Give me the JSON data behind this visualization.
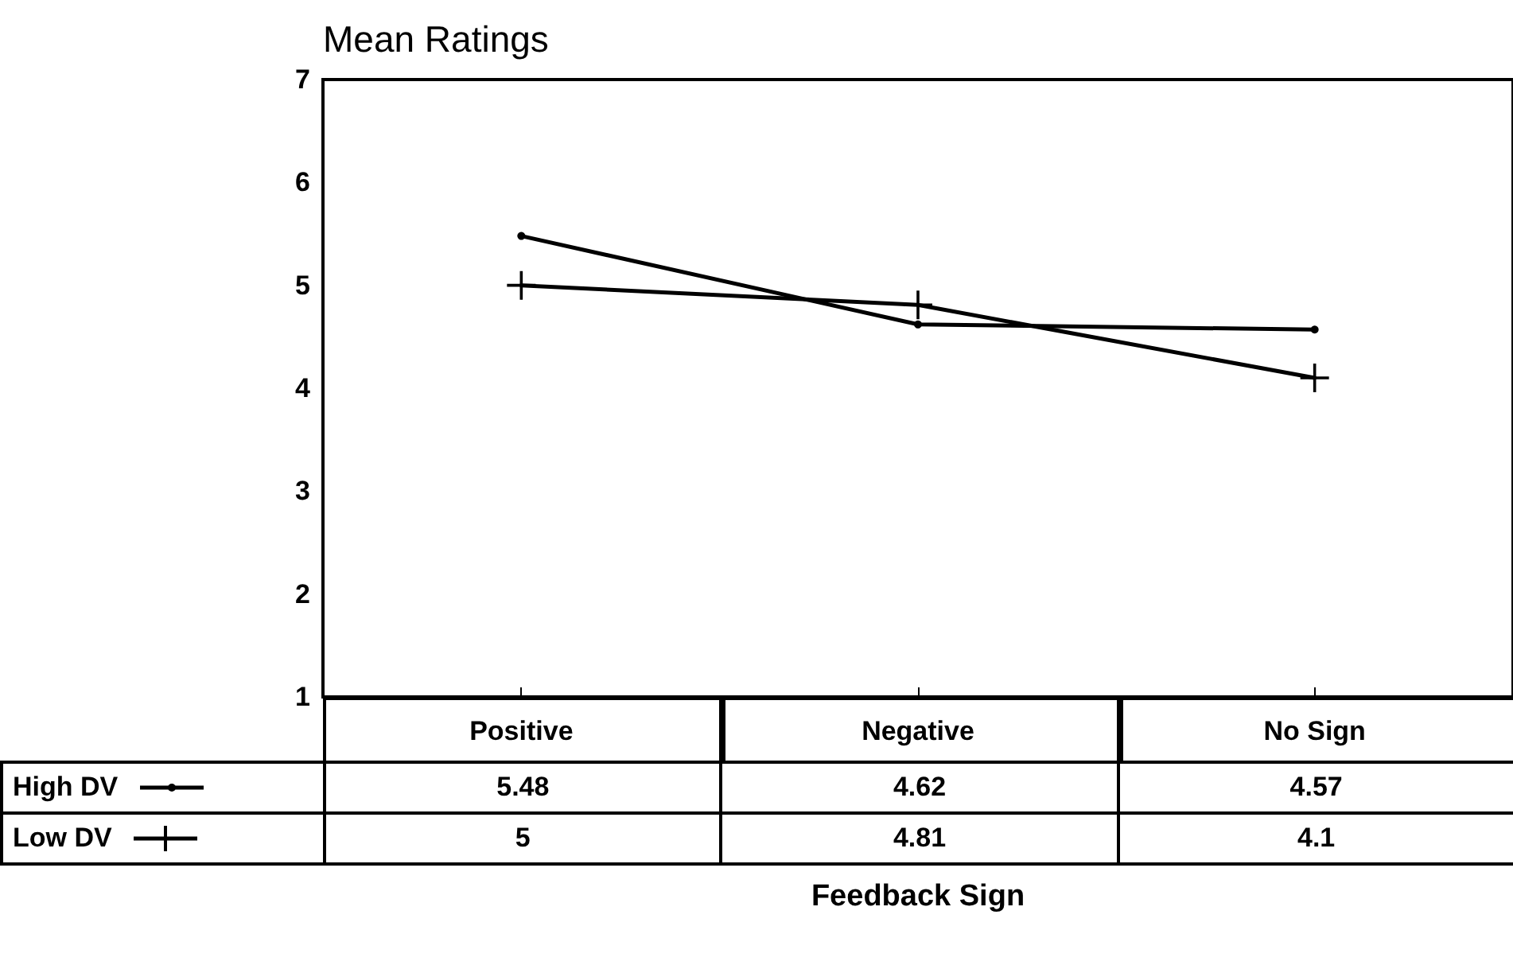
{
  "chart_data": {
    "type": "line",
    "title": "Mean Ratings",
    "xlabel": "Feedback Sign",
    "categories": [
      "Positive",
      "Negative",
      "No Sign"
    ],
    "series": [
      {
        "name": "High DV",
        "color": "#000000",
        "marker": "circle",
        "values": [
          5.48,
          4.62,
          4.57
        ]
      },
      {
        "name": "Low DV",
        "color": "#000000",
        "marker": "cross",
        "values": [
          5,
          4.81,
          4.1
        ]
      }
    ],
    "ylim": [
      1,
      7
    ],
    "yticks": [
      1,
      2,
      3,
      4,
      5,
      6,
      7
    ],
    "grid": false,
    "data_labels": true,
    "legend": "bottom left",
    "line_style": "solid"
  }
}
